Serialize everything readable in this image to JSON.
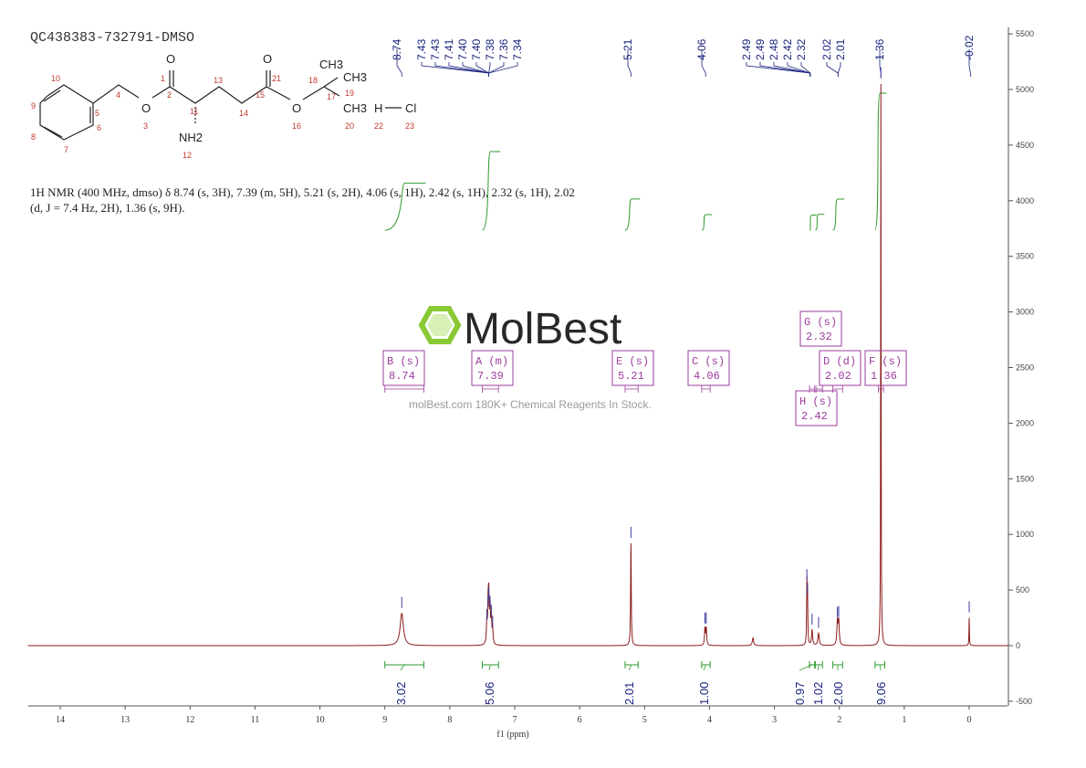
{
  "sample_id": "QC438383-732791-DMSO",
  "summary": "1H NMR (400 MHz, dmso) δ 8.74 (s, 3H), 7.39 (m, 5H), 5.21 (s, 2H), 4.06 (s, 1H), 2.42 (s, 1H), 2.32 (s, 1H), 2.02 (d, J = 7.4 Hz, 2H), 1.36 (s, 9H).",
  "watermark": {
    "logo": "MolBest",
    "tagline": "molBest.com 180K+ Chemical Reagents In Stock.",
    "color": "#7dc41f"
  },
  "structure": {
    "atoms": [
      "O",
      "O",
      "CH3",
      "CH3",
      "CH3",
      "O",
      "O",
      "NH2",
      "H",
      "Cl"
    ],
    "numbers": [
      "1",
      "2",
      "3",
      "4",
      "5",
      "6",
      "7",
      "8",
      "9",
      "10",
      "11",
      "12",
      "13",
      "14",
      "15",
      "16",
      "17",
      "18",
      "19",
      "20",
      "21",
      "22",
      "23"
    ]
  },
  "chart_data": {
    "type": "line",
    "xlabel": "f1 (ppm)",
    "xlim": [
      14.5,
      -0.6
    ],
    "ylim": [
      -500,
      5500
    ],
    "xticks": [
      "14",
      "13",
      "12",
      "11",
      "10",
      "9",
      "8",
      "7",
      "6",
      "5",
      "4",
      "3",
      "2",
      "1",
      "0"
    ],
    "yticks": [
      "-500",
      "0",
      "500",
      "1000",
      "1500",
      "2000",
      "2500",
      "3000",
      "3500",
      "4000",
      "4500",
      "5000",
      "5500"
    ],
    "spectrum_color": "#8b1a1a",
    "integral_color": "#2e9a2e",
    "peak_label_color": "#1a237e",
    "multiplet_color": "#9c3c9c",
    "peaks": [
      {
        "ppm": 8.74,
        "height": 290,
        "width": 0.03
      },
      {
        "ppm": 7.43,
        "height": 180,
        "width": 0.008
      },
      {
        "ppm": 7.41,
        "height": 300,
        "width": 0.008
      },
      {
        "ppm": 7.4,
        "height": 380,
        "width": 0.008
      },
      {
        "ppm": 7.38,
        "height": 300,
        "width": 0.008
      },
      {
        "ppm": 7.36,
        "height": 220,
        "width": 0.008
      },
      {
        "ppm": 7.34,
        "height": 120,
        "width": 0.008
      },
      {
        "ppm": 5.21,
        "height": 920,
        "width": 0.006
      },
      {
        "ppm": 4.07,
        "height": 150,
        "width": 0.008
      },
      {
        "ppm": 4.05,
        "height": 150,
        "width": 0.008
      },
      {
        "ppm": 3.33,
        "height": 70,
        "width": 0.012
      },
      {
        "ppm": 2.5,
        "height": 540,
        "width": 0.005
      },
      {
        "ppm": 2.49,
        "height": 420,
        "width": 0.005
      },
      {
        "ppm": 2.42,
        "height": 140,
        "width": 0.01
      },
      {
        "ppm": 2.32,
        "height": 110,
        "width": 0.012
      },
      {
        "ppm": 2.03,
        "height": 200,
        "width": 0.01
      },
      {
        "ppm": 2.01,
        "height": 210,
        "width": 0.01
      },
      {
        "ppm": 1.36,
        "height": 5050,
        "width": 0.004
      },
      {
        "ppm": 0.0,
        "height": 250,
        "width": 0.004
      }
    ],
    "peak_labels": [
      {
        "group": [
          "8.74"
        ],
        "ppm": [
          8.74
        ]
      },
      {
        "group": [
          "7.43",
          "7.43",
          "7.41",
          "7.40",
          "7.40",
          "7.38",
          "7.36",
          "7.34"
        ],
        "ppm": [
          7.4
        ]
      },
      {
        "group": [
          "5.21"
        ],
        "ppm": [
          5.21
        ]
      },
      {
        "group": [
          "4.06"
        ],
        "ppm": [
          4.06
        ]
      },
      {
        "group": [
          "2.49",
          "2.49",
          "2.48",
          "2.42",
          "2.32"
        ],
        "ppm": [
          2.45
        ]
      },
      {
        "group": [
          "2.02",
          "2.01"
        ],
        "ppm": [
          2.02
        ]
      },
      {
        "group": [
          "1.36"
        ],
        "ppm": [
          1.36
        ]
      },
      {
        "group": [
          "-0.02"
        ],
        "ppm": [
          -0.02
        ]
      }
    ],
    "integrals": [
      {
        "value": "3.02",
        "from": 9.0,
        "to": 8.4
      },
      {
        "value": "5.06",
        "from": 7.5,
        "to": 7.25
      },
      {
        "value": "2.01",
        "from": 5.3,
        "to": 5.1
      },
      {
        "value": "1.00",
        "from": 4.12,
        "to": 3.99
      },
      {
        "value": "0.97",
        "from": 2.46,
        "to": 2.38
      },
      {
        "value": "1.02",
        "from": 2.37,
        "to": 2.26
      },
      {
        "value": "2.00",
        "from": 2.1,
        "to": 1.95
      },
      {
        "value": "9.06",
        "from": 1.45,
        "to": 1.3
      }
    ],
    "multiplets": [
      {
        "id": "B",
        "type": "s",
        "shift": "8.74"
      },
      {
        "id": "A",
        "type": "m",
        "shift": "7.39"
      },
      {
        "id": "E",
        "type": "s",
        "shift": "5.21"
      },
      {
        "id": "C",
        "type": "s",
        "shift": "4.06"
      },
      {
        "id": "G",
        "type": "s",
        "shift": "2.32"
      },
      {
        "id": "D",
        "type": "d",
        "shift": "2.02"
      },
      {
        "id": "F",
        "type": "s",
        "shift": "1.36"
      },
      {
        "id": "H",
        "type": "s",
        "shift": "2.42"
      }
    ]
  }
}
